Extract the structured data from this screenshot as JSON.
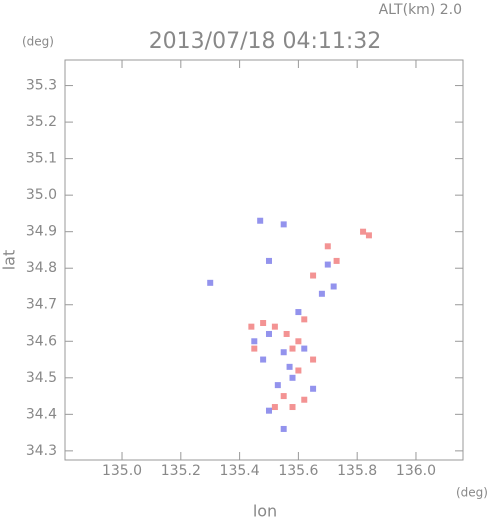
{
  "chart_data": {
    "type": "scatter",
    "title": "2013/07/18 04:11:32",
    "subtitle": "ALT(km)  2.0",
    "y_unit": "(deg)",
    "x_unit": "(deg)",
    "y_label": "lat",
    "x_label": "lon",
    "xlim": [
      134.806,
      136.16
    ],
    "ylim": [
      34.275,
      35.37
    ],
    "xticks": [
      {
        "value": 135,
        "label": "135.0"
      },
      135.2,
      135.4,
      135.6,
      135.8,
      {
        "value": 136,
        "label": "136.0"
      }
    ],
    "yticks": [
      34.3,
      34.4,
      34.5,
      34.6,
      34.7,
      34.8,
      34.9,
      {
        "value": 35,
        "label": "35.0"
      },
      35.1,
      35.2,
      35.3
    ],
    "series": [
      {
        "color": "#f07878",
        "x": [
          135.82,
          135.84,
          135.44,
          135.48,
          135.52,
          135.56,
          135.6,
          135.58,
          135.62,
          135.55,
          135.58,
          135.52,
          135.62,
          135.65,
          135.7,
          135.73,
          135.65,
          135.45,
          135.6
        ],
        "values": [
          34.9,
          34.89,
          34.64,
          34.65,
          34.64,
          34.62,
          34.6,
          34.58,
          34.66,
          34.45,
          34.42,
          34.42,
          34.44,
          34.78,
          34.86,
          34.82,
          34.55,
          34.58,
          34.52
        ]
      },
      {
        "color": "#7878e8",
        "x": [
          135.3,
          135.47,
          135.55,
          135.5,
          135.7,
          135.72,
          135.45,
          135.5,
          135.55,
          135.62,
          135.53,
          135.58,
          135.65,
          135.5,
          135.55,
          135.68,
          135.6,
          135.48,
          135.57
        ],
        "values": [
          34.76,
          34.93,
          34.92,
          34.82,
          34.81,
          34.75,
          34.6,
          34.62,
          34.57,
          34.58,
          34.48,
          34.5,
          34.47,
          34.41,
          34.36,
          34.73,
          34.68,
          34.55,
          34.53
        ]
      }
    ]
  }
}
